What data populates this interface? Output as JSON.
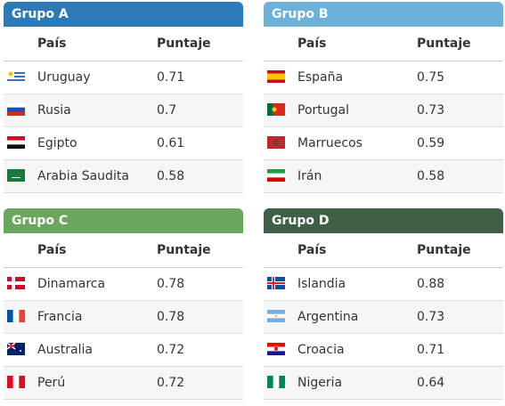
{
  "groups": [
    {
      "title": "Grupo A",
      "header": [
        "País",
        "Puntaje"
      ],
      "rows": [
        [
          "Uruguay",
          "0.71"
        ],
        [
          "Rusia",
          "0.7"
        ],
        [
          "Egipto",
          "0.61"
        ],
        [
          "Arabia Saudita",
          "0.58"
        ]
      ]
    },
    {
      "title": "Grupo B",
      "header": [
        "País",
        "Puntaje"
      ],
      "rows": [
        [
          "España",
          "0.75"
        ],
        [
          "Portugal",
          "0.73"
        ],
        [
          "Marruecos",
          "0.59"
        ],
        [
          "Irán",
          "0.58"
        ]
      ]
    },
    {
      "title": "Grupo C",
      "header": [
        "País",
        "Puntaje"
      ],
      "rows": [
        [
          "Dinamarca",
          "0.78"
        ],
        [
          "Francia",
          "0.78"
        ],
        [
          "Australia",
          "0.72"
        ],
        [
          "Perú",
          "0.72"
        ]
      ]
    },
    {
      "title": "Grupo D",
      "header": [
        "País",
        "Puntaje"
      ],
      "rows": [
        [
          "Islandia",
          "0.88"
        ],
        [
          "Argentina",
          "0.73"
        ],
        [
          "Croacia",
          "0.71"
        ],
        [
          "Nigeria",
          "0.64"
        ]
      ]
    }
  ]
}
